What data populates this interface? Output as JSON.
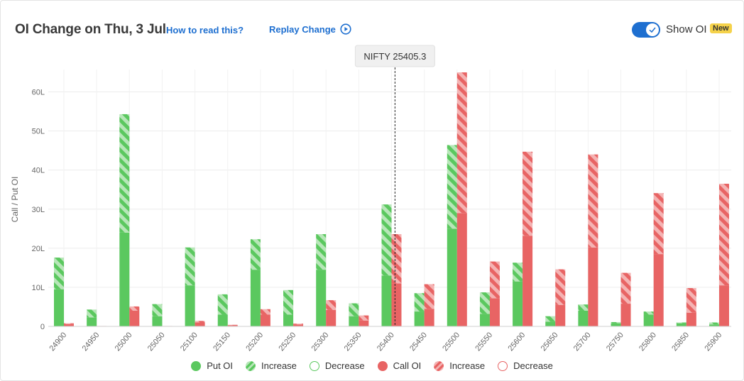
{
  "header": {
    "title": "OI Change on Thu, 3 Jul",
    "help_link": "How to read this?",
    "replay_link": "Replay Change",
    "toggle_label": "Show OI",
    "badge": "New"
  },
  "colors": {
    "put": "#5bc85f",
    "put_light": "#b7e6b8",
    "call": "#e86464",
    "call_light": "#f4b3b3",
    "link": "#1e6fd0"
  },
  "legend": [
    {
      "label": "Put OI",
      "style": "put-solid"
    },
    {
      "label": "Increase",
      "style": "put-inc"
    },
    {
      "label": "Decrease",
      "style": "put-dec"
    },
    {
      "label": "Call OI",
      "style": "call-solid"
    },
    {
      "label": "Increase",
      "style": "call-inc"
    },
    {
      "label": "Decrease",
      "style": "call-dec"
    }
  ],
  "chart_data": {
    "type": "bar",
    "ylabel": "Call / Put OI",
    "ylim": [
      0,
      65
    ],
    "yticks": [
      0,
      10,
      20,
      30,
      40,
      50,
      60
    ],
    "ytick_labels": [
      "0",
      "10L",
      "20L",
      "30L",
      "40L",
      "50L",
      "60L"
    ],
    "unit": "L",
    "spot_label": "NIFTY 25405.3",
    "spot_value": 25405.3,
    "categories": [
      "24900",
      "24950",
      "25000",
      "25050",
      "25100",
      "25150",
      "25200",
      "25250",
      "25300",
      "25350",
      "25400",
      "25450",
      "25500",
      "25550",
      "25600",
      "25650",
      "25700",
      "25750",
      "25800",
      "25850",
      "25900"
    ],
    "series": [
      {
        "name": "Put OI",
        "base": [
          9.5,
          2.3,
          24.0,
          2.6,
          10.5,
          3.0,
          14.5,
          3.0,
          14.5,
          2.6,
          13.0,
          3.8,
          25.0,
          3.2,
          11.5,
          1.2,
          4.0,
          0.8,
          3.0,
          0.8,
          0.5
        ],
        "increase": [
          8.1,
          2.0,
          30.3,
          3.1,
          9.7,
          5.2,
          7.8,
          6.3,
          9.1,
          3.3,
          18.2,
          4.7,
          21.4,
          5.5,
          4.8,
          1.4,
          1.6,
          0.3,
          0.8,
          0.2,
          0.5
        ]
      },
      {
        "name": "Call OI",
        "base": [
          0.6,
          0.1,
          4.0,
          0.1,
          1.0,
          0.3,
          3.0,
          0.5,
          4.2,
          1.5,
          11.0,
          4.5,
          29.0,
          7.2,
          23.2,
          5.5,
          20.2,
          5.8,
          18.5,
          3.5,
          10.5
        ],
        "increase": [
          0.2,
          0.0,
          1.1,
          0.0,
          0.4,
          0.1,
          1.4,
          0.2,
          2.5,
          1.3,
          12.6,
          6.3,
          36.0,
          9.4,
          21.5,
          9.1,
          23.8,
          7.9,
          15.6,
          6.3,
          26.0
        ]
      }
    ]
  }
}
